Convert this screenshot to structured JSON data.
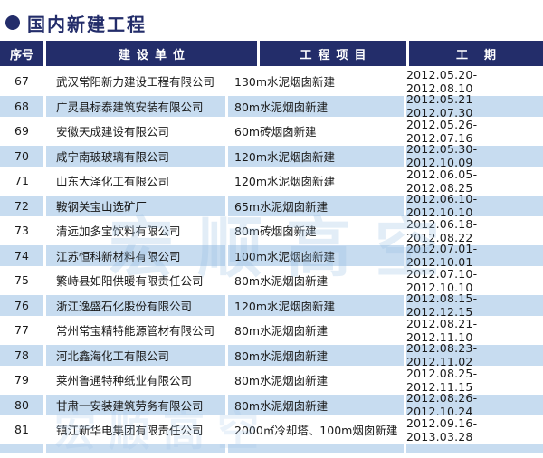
{
  "page_title": {
    "bullet_icon": "circle-bullet",
    "text": "国内新建工程"
  },
  "colors": {
    "header_navy": "#232d6a",
    "stripe_blue": "#c7dcf0",
    "title_navy": "#232d6a",
    "text": "#1a1a1a",
    "background": "#ffffff"
  },
  "watermark": {
    "main": "宏顺高空",
    "sub": "宏顺高空"
  },
  "table": {
    "columns": [
      {
        "key": "no",
        "label": "序号"
      },
      {
        "key": "company",
        "label": "建设单位"
      },
      {
        "key": "project",
        "label": "工程项目"
      },
      {
        "key": "period",
        "label": "工期"
      }
    ],
    "rows": [
      {
        "no": "67",
        "company": "武汉常阳新力建设工程有限公司",
        "project": "130m水泥烟囱新建",
        "period": "2012.05.20-2012.08.10"
      },
      {
        "no": "68",
        "company": "广灵县标泰建筑安装有限公司",
        "project": "80m水泥烟囱新建",
        "period": "2012.05.21-2012.07.30"
      },
      {
        "no": "69",
        "company": "安徽天成建设有限公司",
        "project": "60m砖烟囱新建",
        "period": "2012.05.26-2012.07.16"
      },
      {
        "no": "70",
        "company": "咸宁南玻玻璃有限公司",
        "project": "120m水泥烟囱新建",
        "period": "2012.05.30-2012.10.09"
      },
      {
        "no": "71",
        "company": "山东大泽化工有限公司",
        "project": "120m水泥烟囱新建",
        "period": "2012.06.05-2012.08.25"
      },
      {
        "no": "72",
        "company": "鞍钢关宝山选矿厂",
        "project": "65m水泥烟囱新建",
        "period": "2012.06.10-2012.10.10"
      },
      {
        "no": "73",
        "company": "清远加多宝饮料有限公司",
        "project": "80m砖烟囱新建",
        "period": "2012.06.18-2012.08.22"
      },
      {
        "no": "74",
        "company": "江苏恒科新材料有限公司",
        "project": "100m水泥烟囱新建",
        "period": "2012.07.01-2012.10.01"
      },
      {
        "no": "75",
        "company": "繁峙县如阳供暖有限责任公司",
        "project": "80m水泥烟囱新建",
        "period": "2012.07.10-2012.10.10"
      },
      {
        "no": "76",
        "company": "浙江逸盛石化股份有限公司",
        "project": "120m水泥烟囱新建",
        "period": "2012.08.15-2012.12.15"
      },
      {
        "no": "77",
        "company": "常州常宝精特能源管材有限公司",
        "project": "80m水泥烟囱新建",
        "period": "2012.08.21-2012.11.10"
      },
      {
        "no": "78",
        "company": "河北鑫海化工有限公司",
        "project": "80m水泥烟囱新建",
        "period": "2012.08.23-2012.11.02"
      },
      {
        "no": "79",
        "company": "莱州鲁通特种纸业有限公司",
        "project": "80m水泥烟囱新建",
        "period": "2012.08.25-2012.11.15"
      },
      {
        "no": "80",
        "company": "甘肃一安装建筑劳务有限公司",
        "project": "80m水泥烟囱新建",
        "period": "2012.08.26-2012.10.24"
      },
      {
        "no": "81",
        "company": "镇江新华电集团有限责任公司",
        "project": "2000㎡冷却塔、100m烟囱新建",
        "period": "2012.09.16-2013.03.28"
      }
    ]
  }
}
